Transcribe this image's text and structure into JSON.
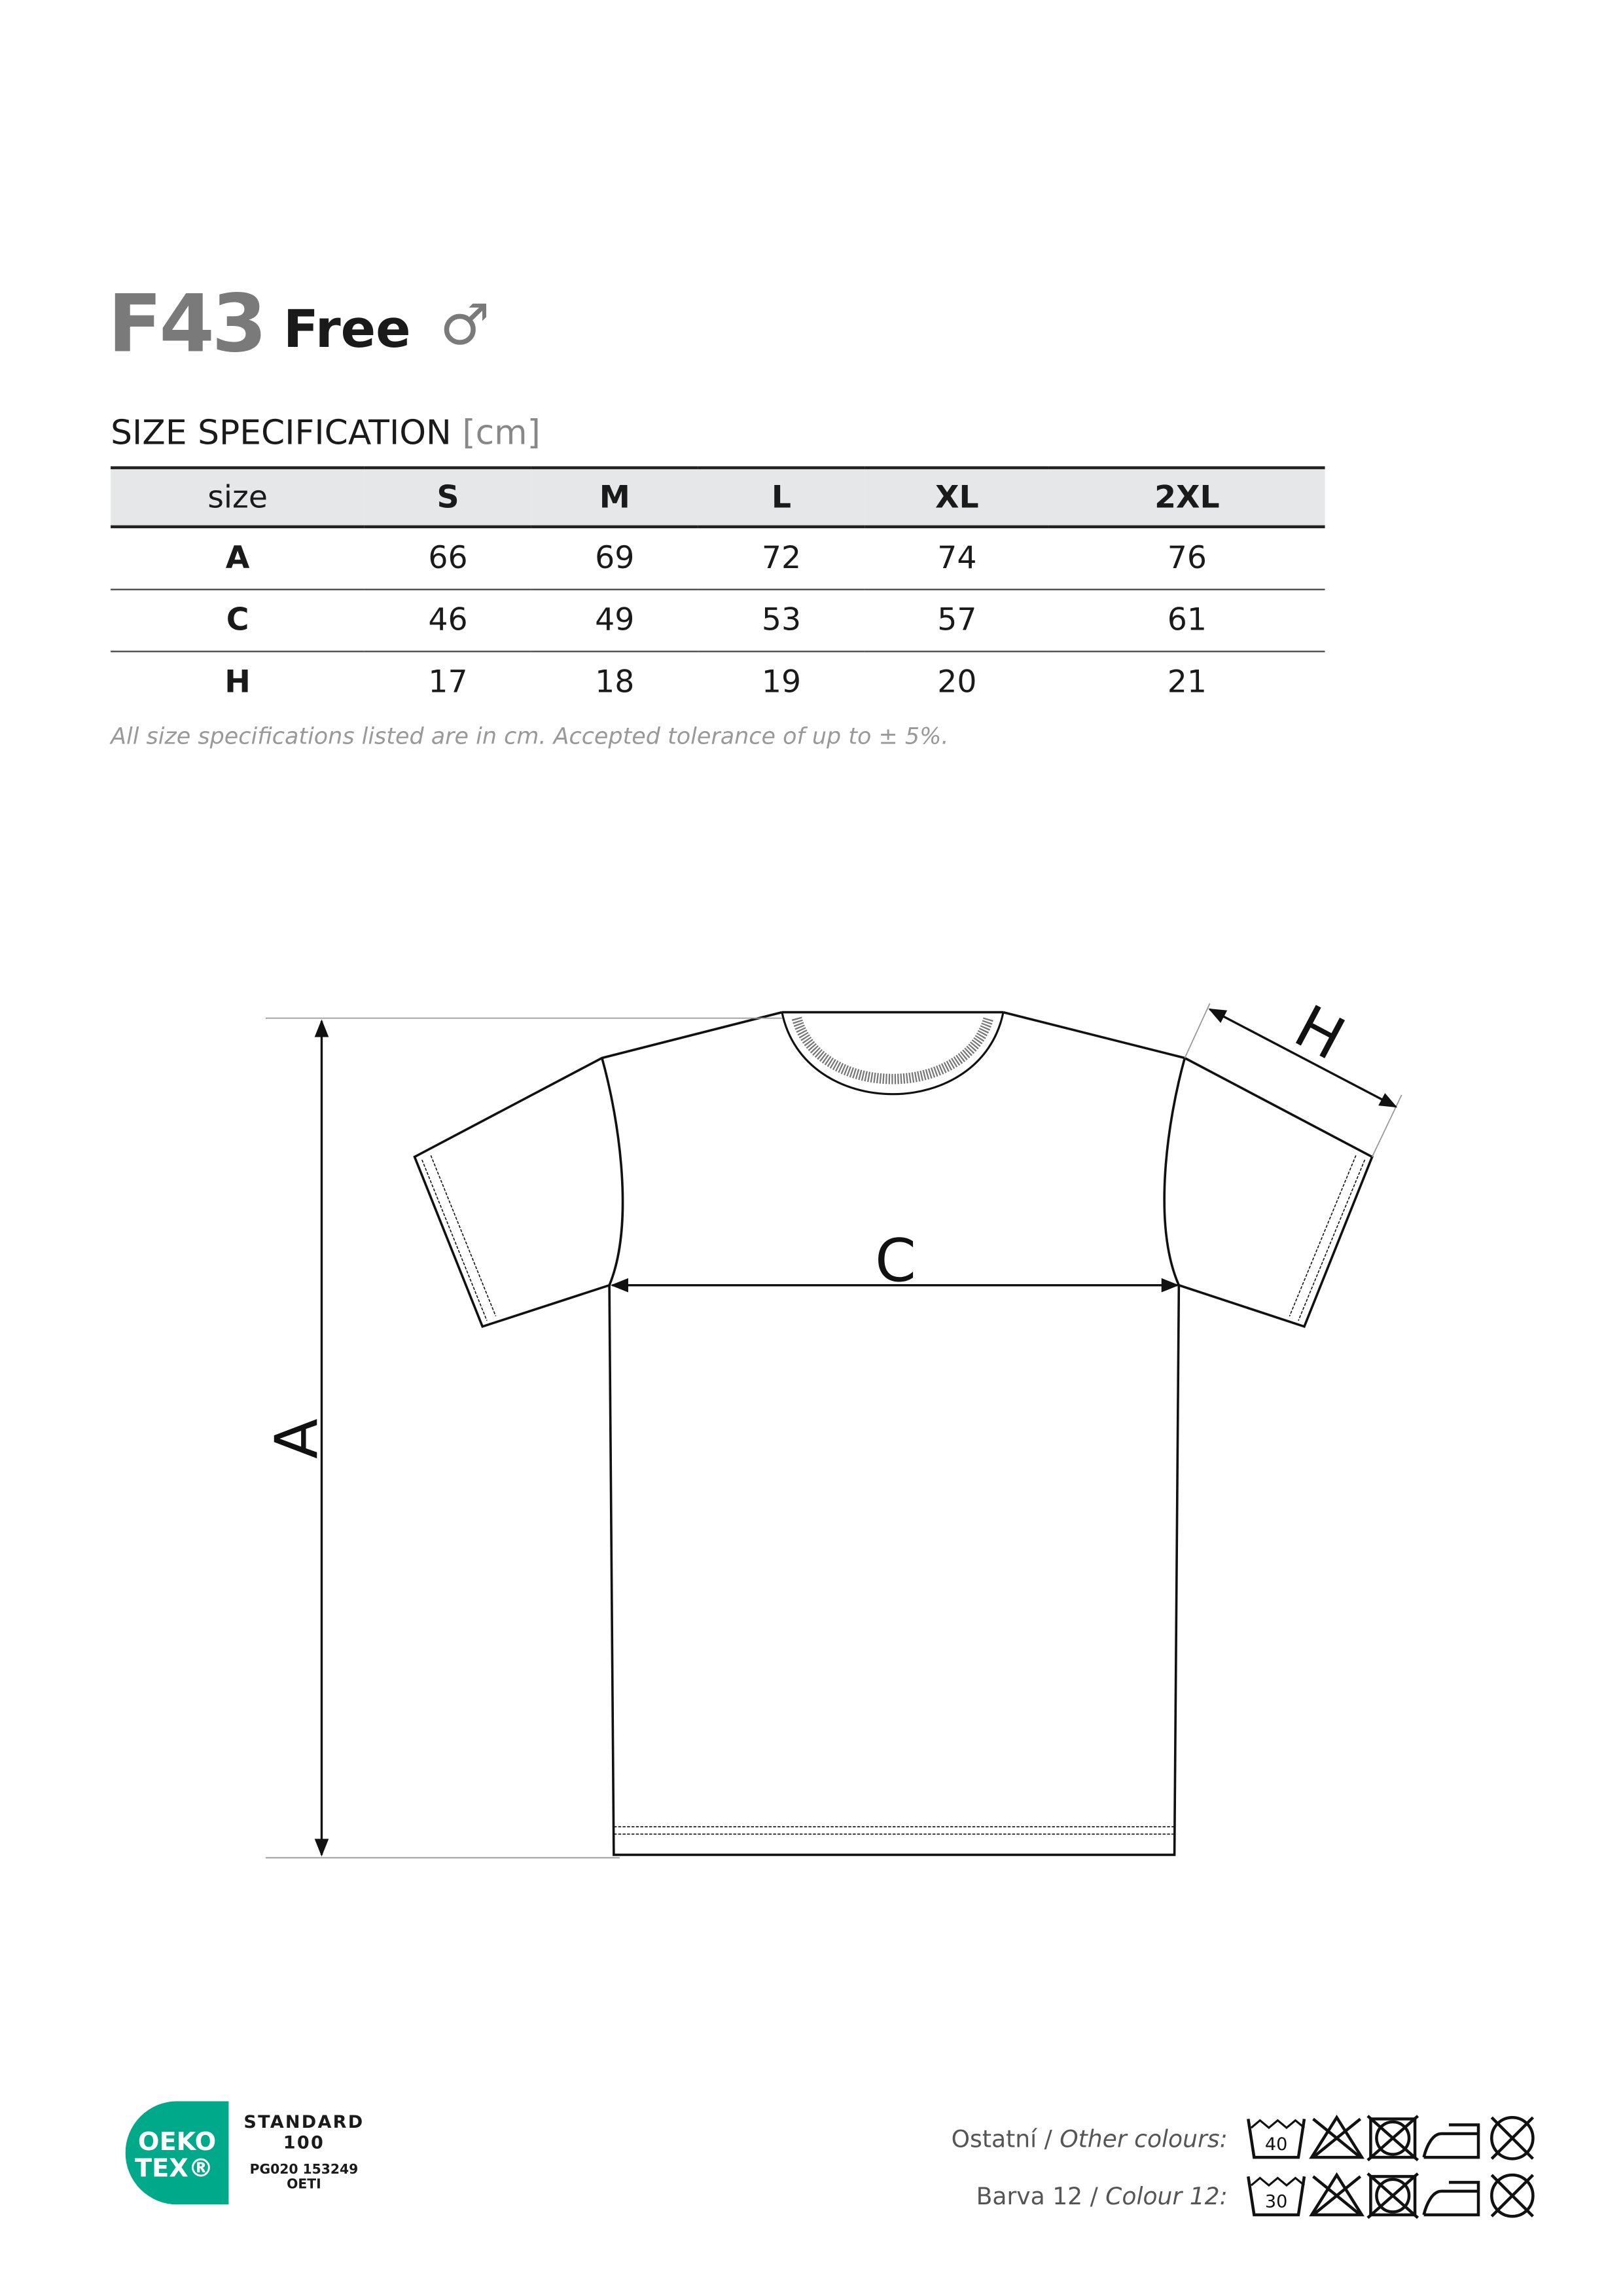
{
  "header": {
    "code": "F43",
    "name": "Free",
    "gender_symbol": "♂"
  },
  "spec": {
    "title": "SIZE SPECIFICATION",
    "unit": "[cm]"
  },
  "table": {
    "headers": [
      "size",
      "S",
      "M",
      "L",
      "XL",
      "2XL"
    ],
    "rows": [
      [
        "A",
        "66",
        "69",
        "72",
        "74",
        "76"
      ],
      [
        "C",
        "46",
        "49",
        "53",
        "57",
        "61"
      ],
      [
        "H",
        "17",
        "18",
        "19",
        "20",
        "21"
      ]
    ]
  },
  "note": "All size specifications listed are in cm. Accepted tolerance of up to ± 5%.",
  "diagram": {
    "label_a": "A",
    "label_c": "C",
    "label_h": "H"
  },
  "certification": {
    "logo_line1": "OEKO",
    "logo_line2": "TEX®",
    "standard": "STANDARD",
    "number": "100",
    "code": "PG020 153249",
    "institute": "OETI",
    "color": "#00a98a"
  },
  "care": {
    "rows": [
      {
        "label_cz": "Ostatní",
        "label_en": "Other colours:",
        "wash_temp": "40"
      },
      {
        "label_cz": "Barva 12",
        "label_en": "Colour 12:",
        "wash_temp": "30"
      }
    ],
    "icons": [
      "wash-icon",
      "no-bleach-icon",
      "no-tumble-dry-icon",
      "iron-low-icon",
      "no-dry-clean-icon"
    ]
  }
}
